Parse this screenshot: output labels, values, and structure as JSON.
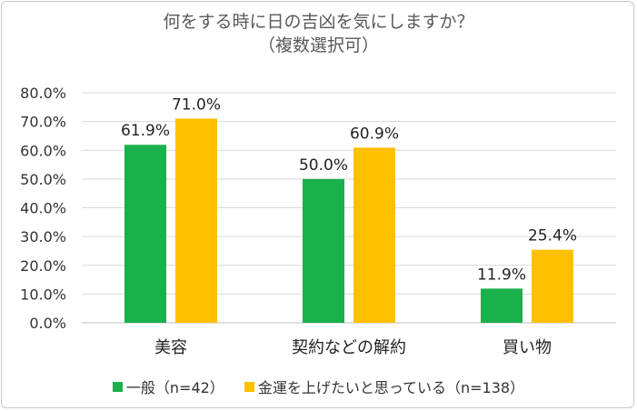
{
  "chart_data": {
    "type": "bar",
    "title_line1": "何をする時に日の吉凶を気にしますか？",
    "title_line2": "（複数選択可）",
    "categories": [
      "美容",
      "契約などの解約",
      "買い物"
    ],
    "series": [
      {
        "name": "一般（n=42）",
        "color": "#1ab04c",
        "values": [
          61.9,
          50.0,
          11.9
        ],
        "labels": [
          "61.9%",
          "50.0%",
          "11.9%"
        ]
      },
      {
        "name": "金運を上げたいと思っている（n=138）",
        "color": "#ffc000",
        "values": [
          71.0,
          60.9,
          25.4
        ],
        "labels": [
          "71.0%",
          "60.9%",
          "25.4%"
        ]
      }
    ],
    "ylim": [
      0,
      80
    ],
    "yticks": [
      0,
      10,
      20,
      30,
      40,
      50,
      60,
      70,
      80
    ],
    "ytick_labels": [
      "0.0%",
      "10.0%",
      "20.0%",
      "30.0%",
      "40.0%",
      "50.0%",
      "60.0%",
      "70.0%",
      "80.0%"
    ],
    "grid": true,
    "legend_position": "bottom"
  }
}
